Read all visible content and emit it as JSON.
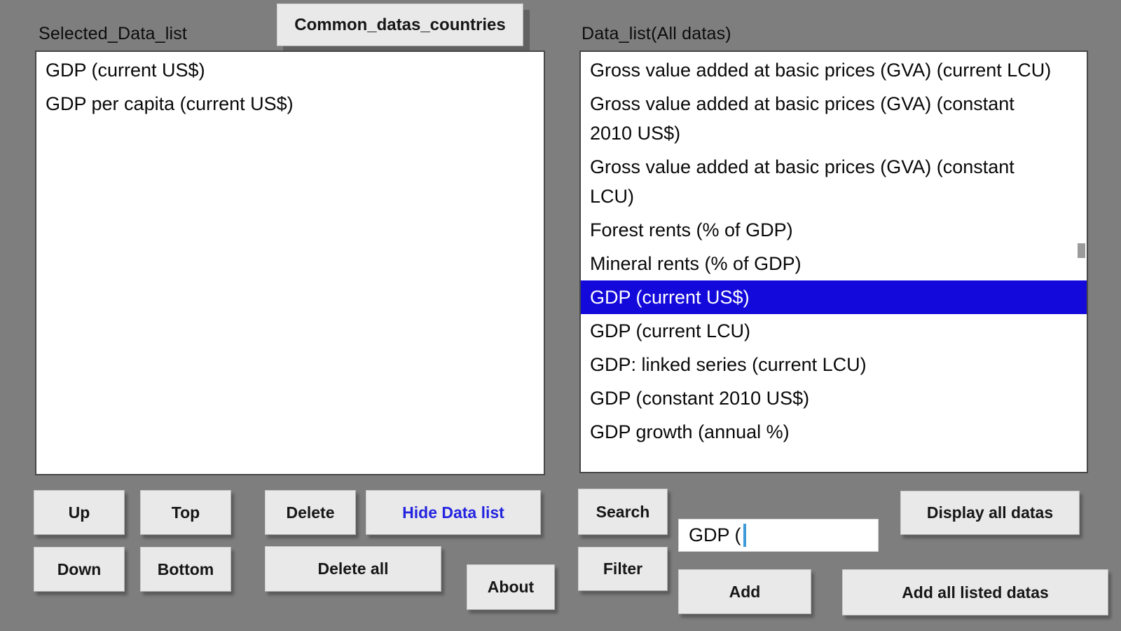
{
  "colors": {
    "background": "#7e7e7e",
    "button_bg": "#e9e9e9",
    "list_bg": "#ffffff",
    "highlight": "#1309db",
    "highlight_text": "#ffffff",
    "hide_label": "#2424e0",
    "cursor": "#3f9bd9"
  },
  "header": {
    "selected_list_label": "Selected_Data_list",
    "common_button_label": "Common_datas_countries",
    "data_list_label": "Data_list(All datas)"
  },
  "selected_list": {
    "items": [
      "GDP (current US$)",
      "GDP per capita (current US$)"
    ]
  },
  "data_list": {
    "items": [
      {
        "label": "Gross value added at basic prices (GVA) (current LCU)",
        "selected": false
      },
      {
        "label": "Gross value added at basic prices (GVA) (constant 2010 US$)",
        "selected": false
      },
      {
        "label": "Gross value added at basic prices (GVA) (constant LCU)",
        "selected": false
      },
      {
        "label": "Forest rents (% of GDP)",
        "selected": false
      },
      {
        "label": "Mineral rents (% of GDP)",
        "selected": false
      },
      {
        "label": "GDP (current US$)",
        "selected": true
      },
      {
        "label": "GDP (current LCU)",
        "selected": false
      },
      {
        "label": "GDP: linked series (current LCU)",
        "selected": false
      },
      {
        "label": "GDP (constant 2010 US$)",
        "selected": false
      },
      {
        "label": "GDP growth (annual %)",
        "selected": false
      }
    ]
  },
  "buttons": {
    "up": "Up",
    "top": "Top",
    "delete": "Delete",
    "hide_data_list": "Hide Data list",
    "down": "Down",
    "bottom": "Bottom",
    "delete_all": "Delete all",
    "about": "About",
    "search": "Search",
    "filter": "Filter",
    "display_all": "Display all datas",
    "add": "Add",
    "add_all": "Add all listed datas"
  },
  "search_input": {
    "value": "GDP ("
  }
}
